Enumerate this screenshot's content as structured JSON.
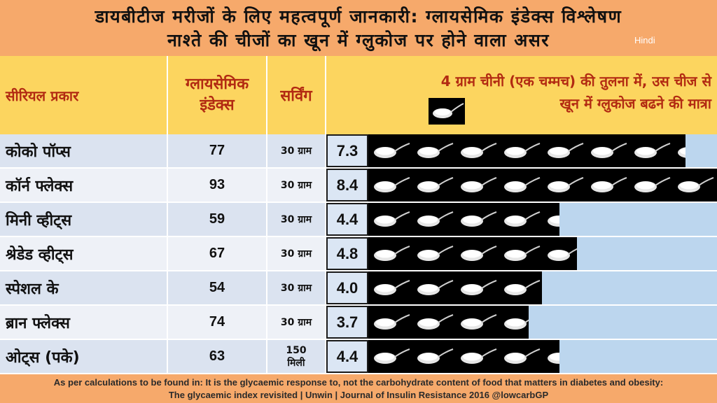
{
  "title": {
    "line1": "डायबीटीज मरीजों के लिए महत्वपूर्ण जानकारी: ग्लायसेमिक इंडेक्स विश्लेषण",
    "line2": "नाश्ते की चीजों का खून में ग्लुकोज पर होने वाला असर",
    "language_tag": "Hindi"
  },
  "header": {
    "name": "सीरियल प्रकार",
    "gi_line1": "ग्लायसेमिक",
    "gi_line2": "इंडेक्स",
    "serving": "सर्विंग",
    "desc_line1": "4 ग्राम चीनी (एक चम्मच) की तुलना में, उस चीज से",
    "desc_line2": "खून में ग्लुकोज बढने की मात्रा",
    "spoon_icon": "sugar-teaspoon-icon"
  },
  "chart_data": {
    "type": "table",
    "columns": [
      "सीरियल प्रकार",
      "ग्लायसेमिक इंडेक्स",
      "सर्विंग",
      "4 ग्राम चीनी (एक चम्मच) की तुलना में, उस चीज से खून में ग्लुकोज बढने की मात्रा"
    ],
    "rows": [
      {
        "name": "कोको पॉप्स",
        "gi": "77",
        "serving": "30 ग्राम",
        "teaspoons": 7.3,
        "teaspoons_label": "7.3"
      },
      {
        "name": "कॉर्न फ्लेक्स",
        "gi": "93",
        "serving": "30 ग्राम",
        "teaspoons": 8.4,
        "teaspoons_label": "8.4"
      },
      {
        "name": "मिनी व्हीट्स",
        "gi": "59",
        "serving": "30 ग्राम",
        "teaspoons": 4.4,
        "teaspoons_label": "4.4"
      },
      {
        "name": "श्रेडेड व्हीट्स",
        "gi": "67",
        "serving": "30 ग्राम",
        "teaspoons": 4.8,
        "teaspoons_label": "4.8"
      },
      {
        "name": "स्पेशल के",
        "gi": "54",
        "serving": "30 ग्राम",
        "teaspoons": 4.0,
        "teaspoons_label": "4.0"
      },
      {
        "name": "ब्रान फ्लेक्स",
        "gi": "74",
        "serving": "30 ग्राम",
        "teaspoons": 3.7,
        "teaspoons_label": "3.7"
      },
      {
        "name": "ओट्स (पके)",
        "gi": "63",
        "serving": "150\nमिली",
        "teaspoons": 4.4,
        "teaspoons_label": "4.4"
      }
    ],
    "unit_icon": "sugar-teaspoon-icon"
  },
  "footer": {
    "line1": "As per calculations to be found in: It is the glycaemic response to, not the carbohydrate content of food that matters in diabetes and obesity:",
    "line2": "The glycaemic index revisited | Unwin | Journal of Insulin Resistance 2016   @lowcarbGP"
  },
  "colors": {
    "title_bg": "#f6a96b",
    "header_bg": "#fcd55f",
    "header_text": "#b22a12",
    "row_bg_a": "#dbe3f0",
    "row_bg_b": "#eef1f7",
    "bar_empty": "#bcd6ee",
    "bar_fill": "#000000"
  }
}
